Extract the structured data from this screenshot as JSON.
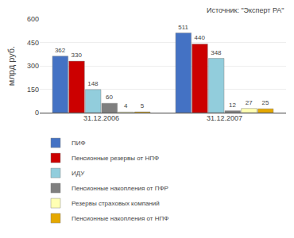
{
  "chart_data": {
    "type": "bar",
    "categories": [
      "31.12.2006",
      "31.12.2007"
    ],
    "series": [
      {
        "name": "ПИФ",
        "color": "#4472C4",
        "values": [
          362,
          511
        ]
      },
      {
        "name": "Пенсионные резервы от НПФ",
        "color": "#CC0000",
        "values": [
          330,
          440
        ]
      },
      {
        "name": "ИДУ",
        "color": "#92CDDC",
        "values": [
          148,
          348
        ]
      },
      {
        "name": "Пенсионные накопления от ПФР",
        "color": "#7F7F7F",
        "values": [
          60,
          12
        ]
      },
      {
        "name": "Резервы страховых компаний",
        "color": "#FFFFB3",
        "values": [
          4,
          27
        ]
      },
      {
        "name": "Пенсионные накопления от НПФ",
        "color": "#E5A800",
        "values": [
          5,
          25
        ]
      }
    ],
    "ylabel": "млрд руб.",
    "ylim": [
      0,
      600
    ],
    "yticks": [
      0,
      150,
      300,
      450,
      600
    ],
    "grid": true,
    "data_labels": true,
    "legend": "bottom",
    "annotations": [
      "Источник: \"Эксперт РА\""
    ]
  }
}
